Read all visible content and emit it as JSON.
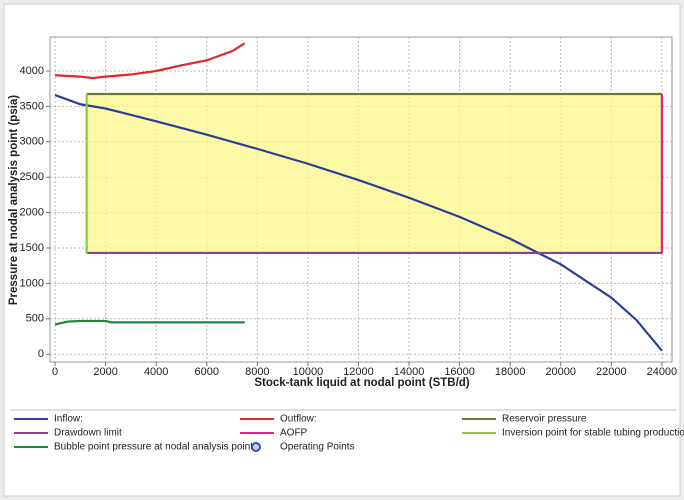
{
  "chart_data": {
    "type": "line",
    "x_label": "Stock-tank liquid at nodal point (STB/d)",
    "y_label": "Pressure at nodal analysis point (psia)",
    "xlim": [
      -200,
      24400
    ],
    "ylim": [
      -110,
      4480
    ],
    "xticks": [
      0,
      2000,
      4000,
      6000,
      8000,
      10000,
      12000,
      14000,
      16000,
      18000,
      20000,
      22000,
      24000
    ],
    "yticks": [
      0,
      500,
      1000,
      1500,
      2000,
      2500,
      3000,
      3500,
      4000
    ],
    "grid": true,
    "series": [
      {
        "name": "Inflow:",
        "color": "#2b3d96",
        "x": [
          0,
          1000,
          2000,
          4000,
          6000,
          8000,
          10000,
          12000,
          14000,
          16000,
          18000,
          20000,
          22000,
          23000,
          24000
        ],
        "values": [
          3660,
          3530,
          3470,
          3290,
          3100,
          2900,
          2690,
          2460,
          2210,
          1940,
          1630,
          1270,
          800,
          480,
          50
        ]
      },
      {
        "name": "Outflow:",
        "color": "#e02828",
        "x": [
          0,
          1000,
          1500,
          2000,
          3000,
          4000,
          5000,
          6000,
          7000,
          7500
        ],
        "values": [
          3940,
          3920,
          3900,
          3920,
          3950,
          4000,
          4080,
          4150,
          4280,
          4390
        ]
      },
      {
        "name": "Reservoir pressure",
        "color": "#6f7a2e",
        "x": [
          1250,
          24000
        ],
        "values": [
          3675,
          3675
        ]
      },
      {
        "name": "Drawdown limit",
        "color": "#8a3fa0",
        "x": [
          1250,
          24000
        ],
        "values": [
          1430,
          1430
        ]
      },
      {
        "name": "AOFP",
        "color": "#e0208c",
        "x": [
          24000,
          24000
        ],
        "values": [
          1430,
          3675
        ]
      },
      {
        "name": "Inversion point for stable tubing production",
        "color": "#8dc63f",
        "x": [
          1250,
          1250
        ],
        "values": [
          1430,
          3675
        ]
      },
      {
        "name": "Bubble point pressure at nodal analysis point",
        "color": "#1a8a3a",
        "x": [
          0,
          500,
          1000,
          2000,
          2200,
          3000,
          7500
        ],
        "values": [
          420,
          460,
          470,
          470,
          450,
          450,
          450
        ]
      },
      {
        "name": "Operating Points",
        "color": "#3a4fa8",
        "marker": "circle",
        "x": [],
        "values": []
      }
    ]
  }
}
